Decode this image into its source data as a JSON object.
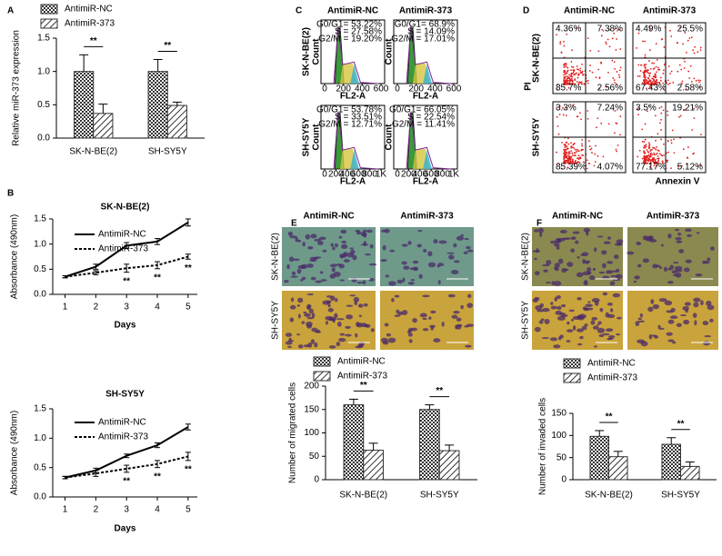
{
  "panel_labels": [
    "A",
    "B",
    "C",
    "D",
    "E",
    "F"
  ],
  "chart_data": [
    {
      "type": "bar",
      "ylabel": "Relative miR-373 expression",
      "categories": [
        "SK-N-BE(2)",
        "SH-SY5Y"
      ],
      "series": [
        {
          "name": "AntimiR-NC",
          "color": "#333333",
          "pattern": "crosshatch",
          "values": [
            1.0,
            1.0
          ],
          "errors": [
            0.25,
            0.18
          ]
        },
        {
          "name": "AntimiR-373",
          "color": "#333333",
          "pattern": "diagonal",
          "values": [
            0.37,
            0.49
          ],
          "errors": [
            0.14,
            0.05
          ]
        }
      ],
      "significance": [
        "**",
        "**"
      ],
      "ylim": [
        0,
        1.5
      ],
      "yticks": [
        {
          "value": 0,
          "label": "0.0"
        },
        {
          "value": 0.5,
          "label": "0.5"
        },
        {
          "value": 1,
          "label": "1.0"
        },
        {
          "value": 1.5,
          "label": "1.5"
        }
      ],
      "legend": "upper left"
    },
    {
      "type": "line",
      "title": "SK-N-BE(2)",
      "xlabel": "Days",
      "ylabel": "Absorbance (490nm)",
      "x": [
        1,
        2,
        3,
        4,
        5
      ],
      "series": [
        {
          "name": "AntimiR-NC",
          "color": "#000000",
          "dash": "solid",
          "values": [
            0.35,
            0.55,
            0.97,
            1.05,
            1.43
          ],
          "errors": [
            0.02,
            0.05,
            0.06,
            0.06,
            0.07
          ]
        },
        {
          "name": "AntimiR-373",
          "color": "#000000",
          "dash": "dotted",
          "values": [
            0.35,
            0.43,
            0.52,
            0.58,
            0.75
          ],
          "errors": [
            0.02,
            0.04,
            0.08,
            0.07,
            0.05
          ]
        }
      ],
      "significance": [
        null,
        null,
        "**",
        "**",
        "**"
      ],
      "xlim": [
        0.6,
        5.3
      ],
      "xticks": [
        1,
        2,
        3,
        4,
        5
      ],
      "ylim": [
        0,
        1.5
      ],
      "yticks": [
        {
          "value": 0,
          "label": "0.0"
        },
        {
          "value": 0.5,
          "label": "0.5"
        },
        {
          "value": 1,
          "label": "1.0"
        },
        {
          "value": 1.5,
          "label": "1.5"
        }
      ],
      "legend": "upper left"
    },
    {
      "type": "line",
      "title": "SH-SY5Y",
      "xlabel": "Days",
      "ylabel": "Absorbance (490nm)",
      "x": [
        1,
        2,
        3,
        4,
        5
      ],
      "series": [
        {
          "name": "AntimiR-NC",
          "color": "#000000",
          "dash": "solid",
          "values": [
            0.33,
            0.45,
            0.7,
            0.88,
            1.19
          ],
          "errors": [
            0.02,
            0.04,
            0.03,
            0.04,
            0.05
          ]
        },
        {
          "name": "AntimiR-373",
          "color": "#000000",
          "dash": "dotted",
          "values": [
            0.33,
            0.4,
            0.48,
            0.56,
            0.69
          ],
          "errors": [
            0.02,
            0.05,
            0.06,
            0.06,
            0.07
          ]
        }
      ],
      "significance": [
        null,
        null,
        "**",
        "**",
        "**"
      ],
      "xlim": [
        0.6,
        5.3
      ],
      "xticks": [
        1,
        2,
        3,
        4,
        5
      ],
      "ylim": [
        0,
        1.5
      ],
      "yticks": [
        {
          "value": 0,
          "label": "0.0"
        },
        {
          "value": 0.5,
          "label": "0.5"
        },
        {
          "value": 1,
          "label": "1.0"
        },
        {
          "value": 1.5,
          "label": "1.5"
        }
      ],
      "legend": "upper left"
    },
    {
      "type": "bar",
      "ylabel": "Number of migrated cells",
      "categories": [
        "SK-N-BE(2)",
        "SH-SY5Y"
      ],
      "series": [
        {
          "name": "AntimiR-NC",
          "color": "#333333",
          "pattern": "crosshatch",
          "values": [
            160,
            150
          ],
          "errors": [
            12,
            10
          ]
        },
        {
          "name": "AntimiR-373",
          "color": "#333333",
          "pattern": "diagonal",
          "values": [
            63,
            62
          ],
          "errors": [
            15,
            12
          ]
        }
      ],
      "significance": [
        "**",
        "**"
      ],
      "ylim": [
        0,
        200
      ],
      "yticks": [
        0,
        50,
        100,
        150,
        200
      ],
      "legend": "upper left"
    },
    {
      "type": "bar",
      "ylabel": "Number of invaded cells",
      "categories": [
        "SK-N-BE(2)",
        "SH-SY5Y"
      ],
      "series": [
        {
          "name": "AntimiR-NC",
          "color": "#333333",
          "pattern": "crosshatch",
          "values": [
            98,
            80
          ],
          "errors": [
            13,
            15
          ]
        },
        {
          "name": "AntimiR-373",
          "color": "#333333",
          "pattern": "diagonal",
          "values": [
            52,
            30
          ],
          "errors": [
            12,
            10
          ]
        }
      ],
      "significance": [
        "**",
        "**"
      ],
      "ylim": [
        0,
        150
      ],
      "yticks": [
        0,
        50,
        100,
        150
      ],
      "legend": "upper left"
    }
  ],
  "flow_cytometry": {
    "columns": [
      "AntimiR-NC",
      "AntimiR-373"
    ],
    "rows": [
      "SK-N-BE(2)",
      "SH-SY5Y"
    ],
    "xlabel": "FL2-A",
    "ylabel": "Count",
    "top_xticks": [
      0,
      200,
      400,
      600
    ],
    "bottom_xticks": [
      0,
      200,
      400,
      600,
      800,
      {
        "value": 1000,
        "label": "1K"
      }
    ],
    "stats": [
      [
        [
          "G0/G1= 53.22%",
          "S = 27.58%",
          "G2/M = 19.20%"
        ],
        [
          "G0/G1= 68.9%",
          "S = 14.09%",
          "G2/M = 17.01%"
        ]
      ],
      [
        [
          "G0/G1= 53.78%",
          "S = 33.51%",
          "G2/M = 12.71%"
        ],
        [
          "G0/G1= 66.05%",
          "S = 22.54%",
          "G2/M = 11.41%"
        ]
      ]
    ]
  },
  "apoptosis": {
    "columns": [
      "AntimiR-NC",
      "AntimiR-373"
    ],
    "rows": [
      "SK-N-BE(2)",
      "SH-SY5Y"
    ],
    "xlabel": "Annexin V",
    "ylabel": "PI",
    "quadrants": [
      [
        [
          "4.36%",
          "7.38%",
          "85.7%",
          "2.56%"
        ],
        [
          "4.49%",
          "25.5%",
          "67.43%",
          "2.58%"
        ]
      ],
      [
        [
          "3.3%",
          "7.24%",
          "85.39%",
          "4.07%"
        ],
        [
          "3.5%",
          "19.21%",
          "77.17%",
          "5.12%"
        ]
      ]
    ]
  },
  "migration": {
    "columns": [
      "AntimiR-NC",
      "AntimiR-373"
    ],
    "rows": [
      "SK-N-BE(2)",
      "SH-SY5Y"
    ]
  },
  "invasion": {
    "columns": [
      "AntimiR-NC",
      "AntimiR-373"
    ],
    "rows": [
      "SK-N-BE(2)",
      "SH-SY5Y"
    ]
  }
}
